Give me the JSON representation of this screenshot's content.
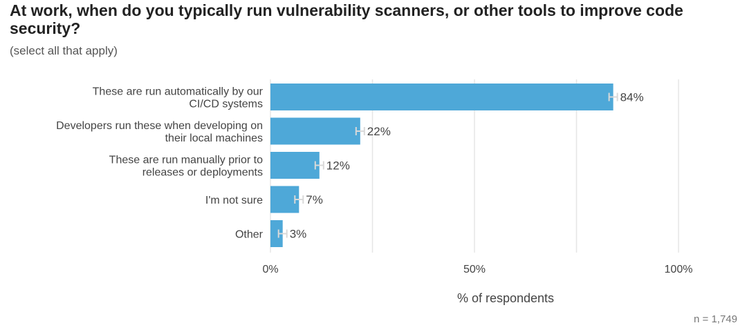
{
  "title": "At work, when do you typically run vulnerability scanners, or other tools to improve code security?",
  "subtitle": "(select all that apply)",
  "footnote": "n =  1,749",
  "colors": {
    "bar": "#4EA8D8",
    "grid": "#E6E6E6",
    "errorbar": "#D9D9D9",
    "text": "#444444"
  },
  "chart_data": {
    "type": "bar",
    "orientation": "horizontal",
    "categories": [
      [
        "These are run automatically by our",
        "CI/CD systems"
      ],
      [
        "Developers run these when developing on",
        "their local machines"
      ],
      [
        "These are run manually prior to",
        "releases or deployments"
      ],
      [
        "I'm not sure"
      ],
      [
        "Other"
      ]
    ],
    "values": [
      84,
      22,
      12,
      7,
      3
    ],
    "value_labels": [
      "84%",
      "22%",
      "12%",
      "7%",
      "3%"
    ],
    "error_bars": true,
    "xlabel": "% of respondents",
    "xlim": [
      0,
      100
    ],
    "xticks": [
      0,
      50,
      100
    ],
    "xtick_labels": [
      "0%",
      "50%",
      "100%"
    ],
    "grid": true
  }
}
